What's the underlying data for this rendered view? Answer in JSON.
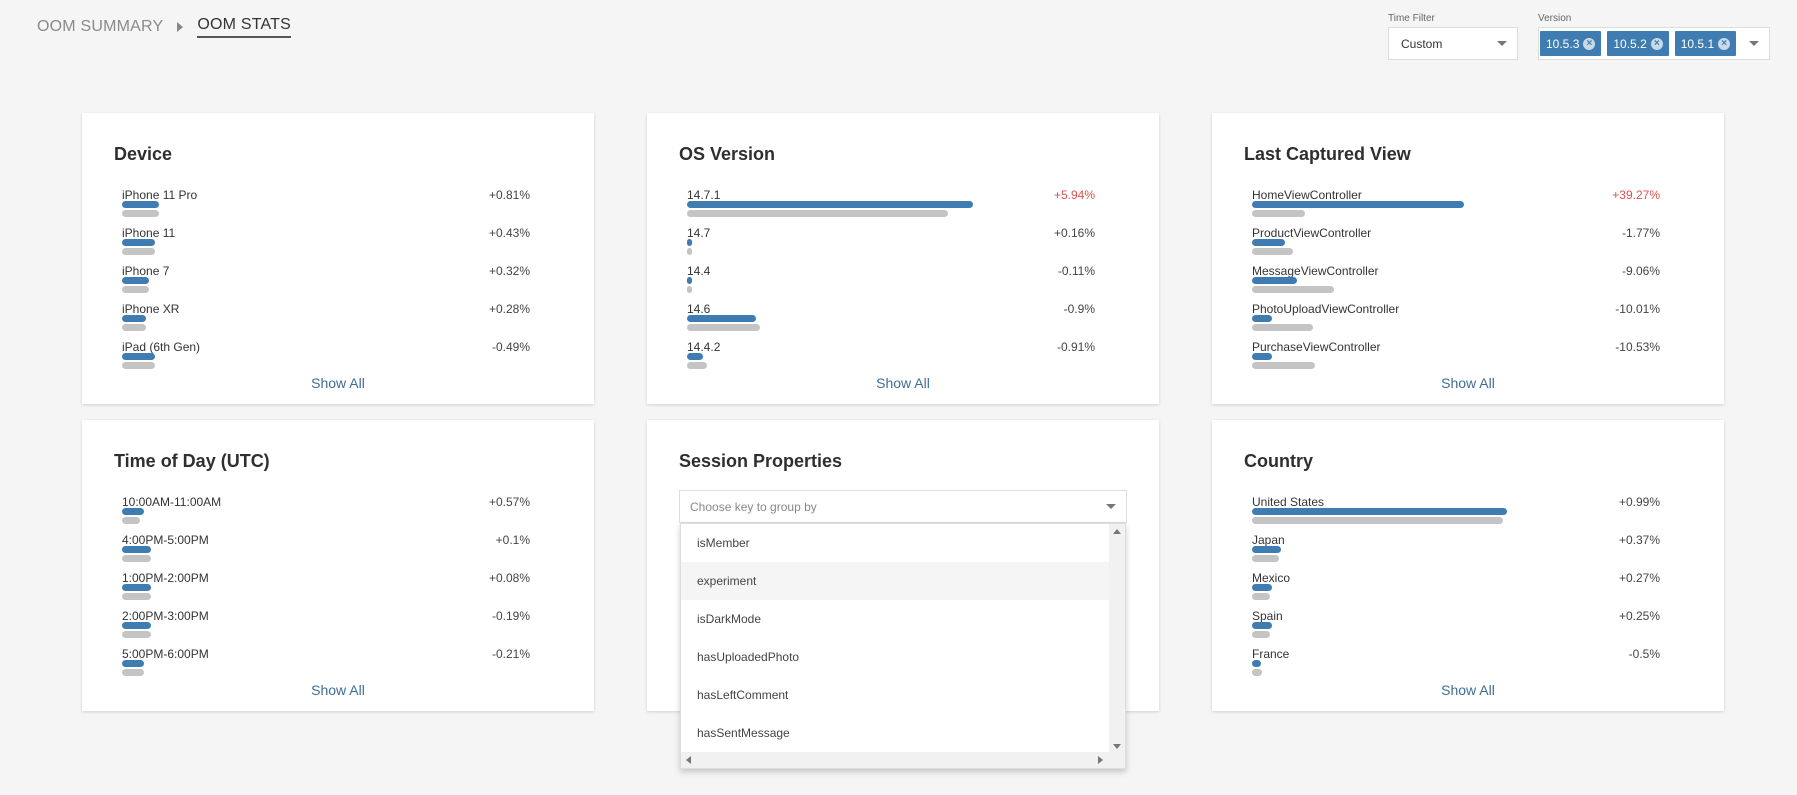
{
  "breadcrumb": {
    "items": [
      "OOM SUMMARY",
      "OOM STATS"
    ]
  },
  "filters": {
    "time_filter": {
      "label": "Time Filter",
      "value": "Custom"
    },
    "version": {
      "label": "Version",
      "chips": [
        "10.5.3",
        "10.5.2",
        "10.5.1"
      ]
    }
  },
  "colors": {
    "bar_primary": "#3e7cb1",
    "bar_secondary": "#c4c4c4",
    "positive_highlight": "#e05050"
  },
  "cards": {
    "device": {
      "title": "Device",
      "show_all": "Show All",
      "rows": [
        {
          "label": "iPhone 11 Pro",
          "value": "+0.81%",
          "a": 0.09,
          "b": 0.09
        },
        {
          "label": "iPhone 11",
          "value": "+0.43%",
          "a": 0.08,
          "b": 0.08
        },
        {
          "label": "iPhone 7",
          "value": "+0.32%",
          "a": 0.065,
          "b": 0.065
        },
        {
          "label": "iPhone XR",
          "value": "+0.28%",
          "a": 0.06,
          "b": 0.06
        },
        {
          "label": "iPad (6th Gen)",
          "value": "-0.49%",
          "a": 0.08,
          "b": 0.08
        }
      ]
    },
    "os_version": {
      "title": "OS Version",
      "show_all": "Show All",
      "rows": [
        {
          "label": "14.7.1",
          "value": "+5.94%",
          "highlight": true,
          "a": 0.7,
          "b": 0.64
        },
        {
          "label": "14.7",
          "value": "+0.16%",
          "a": 0.012,
          "b": 0.012
        },
        {
          "label": "14.4",
          "value": "-0.11%",
          "a": 0.01,
          "b": 0.01
        },
        {
          "label": "14.6",
          "value": "-0.9%",
          "a": 0.17,
          "b": 0.18
        },
        {
          "label": "14.4.2",
          "value": "-0.91%",
          "a": 0.04,
          "b": 0.05
        }
      ]
    },
    "last_captured_view": {
      "title": "Last Captured View",
      "show_all": "Show All",
      "rows": [
        {
          "label": "HomeViewController",
          "value": "+39.27%",
          "highlight": true,
          "a": 0.52,
          "b": 0.13
        },
        {
          "label": "ProductViewController",
          "value": "-1.77%",
          "a": 0.08,
          "b": 0.1
        },
        {
          "label": "MessageViewController",
          "value": "-9.06%",
          "a": 0.11,
          "b": 0.2
        },
        {
          "label": "PhotoUploadViewController",
          "value": "-10.01%",
          "a": 0.05,
          "b": 0.15
        },
        {
          "label": "PurchaseViewController",
          "value": "-10.53%",
          "a": 0.05,
          "b": 0.155
        }
      ]
    },
    "time_of_day": {
      "title": "Time of Day (UTC)",
      "show_all": "Show All",
      "rows": [
        {
          "label": "10:00AM-11:00AM",
          "value": "+0.57%",
          "a": 0.055,
          "b": 0.045
        },
        {
          "label": "4:00PM-5:00PM",
          "value": "+0.1%",
          "a": 0.07,
          "b": 0.07
        },
        {
          "label": "1:00PM-2:00PM",
          "value": "+0.08%",
          "a": 0.07,
          "b": 0.07
        },
        {
          "label": "2:00PM-3:00PM",
          "value": "-0.19%",
          "a": 0.07,
          "b": 0.07
        },
        {
          "label": "5:00PM-6:00PM",
          "value": "-0.21%",
          "a": 0.055,
          "b": 0.055
        }
      ]
    },
    "session_properties": {
      "title": "Session Properties",
      "placeholder": "Choose key to group by",
      "options": [
        "isMember",
        "experiment",
        "isDarkMode",
        "hasUploadedPhoto",
        "hasLeftComment",
        "hasSentMessage"
      ]
    },
    "country": {
      "title": "Country",
      "show_all": "Show All",
      "rows": [
        {
          "label": "United States",
          "value": "+0.99%",
          "a": 0.625,
          "b": 0.615
        },
        {
          "label": "Japan",
          "value": "+0.37%",
          "a": 0.07,
          "b": 0.065
        },
        {
          "label": "Mexico",
          "value": "+0.27%",
          "a": 0.05,
          "b": 0.045
        },
        {
          "label": "Spain",
          "value": "+0.25%",
          "a": 0.05,
          "b": 0.045
        },
        {
          "label": "France",
          "value": "-0.5%",
          "a": 0.022,
          "b": 0.025
        }
      ]
    }
  }
}
